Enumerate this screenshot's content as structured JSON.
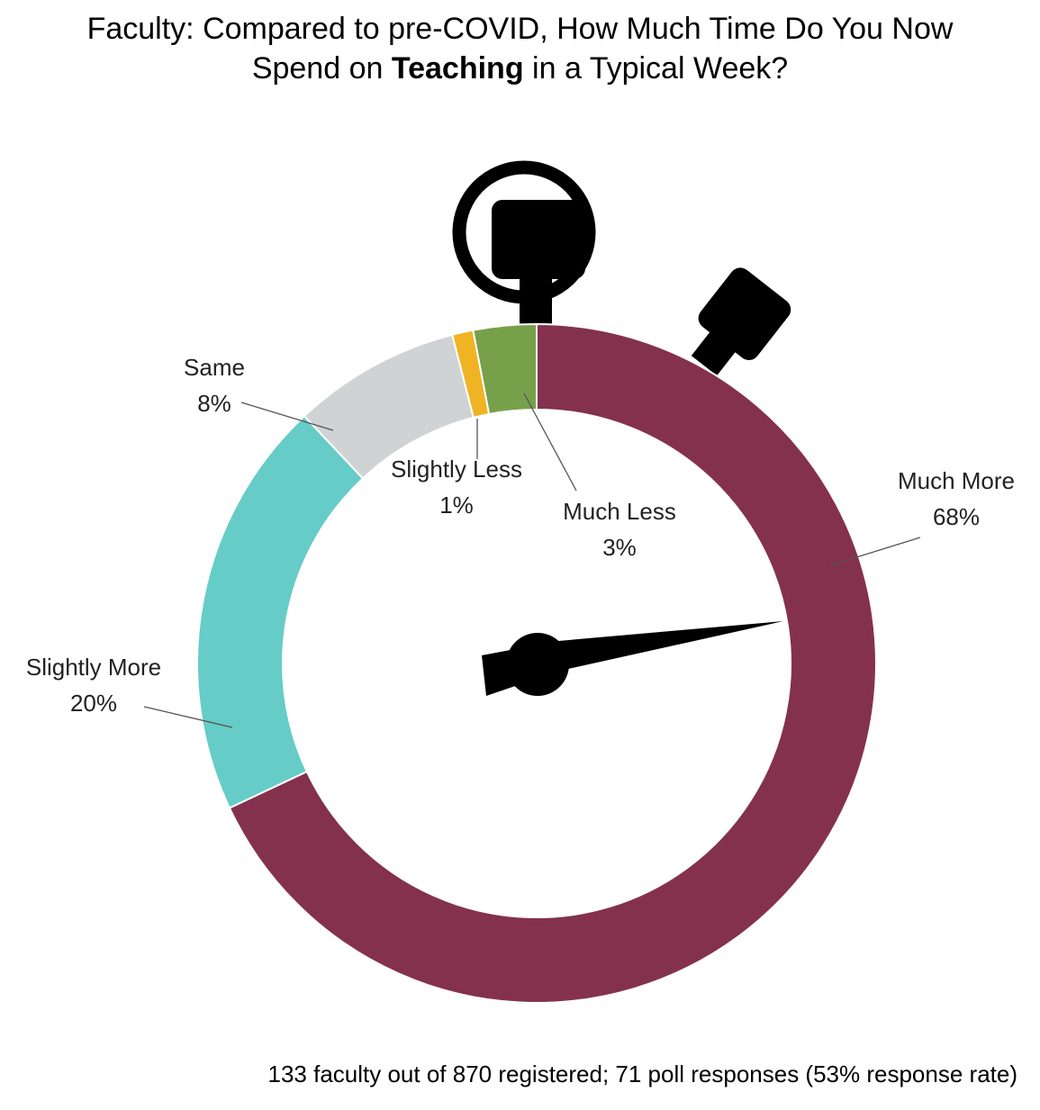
{
  "chart_data": {
    "type": "donut",
    "title": [
      {
        "text": "Faculty: Compared to pre-COVID, How Much Time Do You Now",
        "bold": false
      },
      {
        "text": "Spend on",
        "bold": false
      },
      {
        "text": "Teaching",
        "bold": true
      },
      {
        "text": "in a Typical Week?",
        "bold": false
      }
    ],
    "categories": [
      "Much More",
      "Slightly More",
      "Same",
      "Slightly Less",
      "Much Less"
    ],
    "values": [
      68,
      20,
      8,
      1,
      3
    ],
    "value_labels": [
      "68%",
      "20%",
      "8%",
      "1%",
      "3%"
    ],
    "colors": [
      "#84314e",
      "#66ccc7",
      "#d0d3d4",
      "#f0b323",
      "#76a04a"
    ],
    "note": "133 faculty out of 870 registered; 71 poll responses (53% response rate)"
  }
}
